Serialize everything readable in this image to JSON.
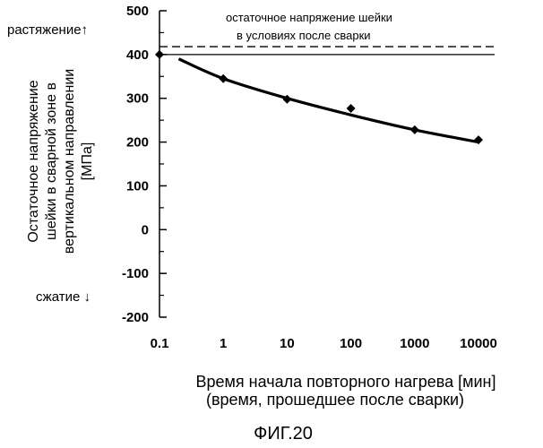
{
  "chart_data": {
    "type": "scatter",
    "x_scale": "log",
    "x_ticks": [
      0.1,
      1,
      10,
      100,
      1000,
      10000
    ],
    "x_tick_labels": [
      "0.1",
      "1",
      "10",
      "100",
      "1000",
      "10000"
    ],
    "xlim": [
      0.1,
      10000
    ],
    "ylim": [
      -200,
      500
    ],
    "y_ticks": [
      -200,
      -100,
      0,
      100,
      200,
      300,
      400,
      500
    ],
    "y_tick_labels": [
      "-200",
      "-100",
      "0",
      "100",
      "200",
      "300",
      "400",
      "500"
    ],
    "ylabel_lines": [
      "Остаточное напряжение",
      "шейки в сварной зоне в",
      "вертикальном направлении",
      "[МПа]"
    ],
    "xlabel_lines": [
      "Время начала повторного нагрева [мин]",
      "(время, прошедшее после сварки)"
    ],
    "tension_label": "растяжение",
    "compression_label": "сжатие",
    "points": [
      {
        "x": 0.1,
        "y": 400
      },
      {
        "x": 1,
        "y": 345
      },
      {
        "x": 10,
        "y": 298
      },
      {
        "x": 100,
        "y": 277
      },
      {
        "x": 1000,
        "y": 228
      },
      {
        "x": 10000,
        "y": 205
      }
    ],
    "trend_curve": [
      {
        "x": 0.2,
        "y": 390
      },
      {
        "x": 1,
        "y": 345
      },
      {
        "x": 10,
        "y": 300
      },
      {
        "x": 100,
        "y": 262
      },
      {
        "x": 1000,
        "y": 228
      },
      {
        "x": 10000,
        "y": 200
      }
    ],
    "reference_line": {
      "y": 418,
      "label_lines": [
        "остаточное напряжение шейки",
        "в условиях после сварки"
      ]
    },
    "figure_caption": "ФИГ.20",
    "grid": false
  }
}
